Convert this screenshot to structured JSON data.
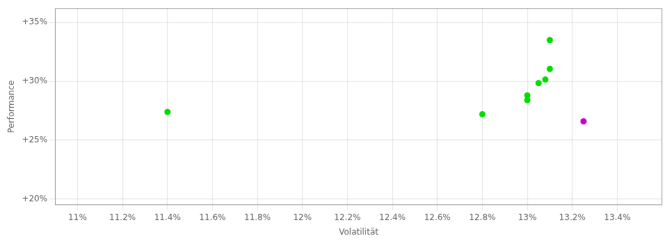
{
  "chart_data": {
    "type": "scatter",
    "xlabel": "Volatilität",
    "ylabel": "Performance",
    "series": [
      {
        "color": "#00dd00",
        "x": [
          0.114,
          0.128,
          0.13,
          0.13,
          0.131,
          0.1308,
          0.1305,
          0.131
        ],
        "values": [
          0.274,
          0.272,
          0.288,
          0.284,
          0.3105,
          0.3015,
          0.2985,
          0.335
        ]
      },
      {
        "color": "#cc00cc",
        "x": [
          0.1325
        ],
        "values": [
          0.266
        ]
      }
    ],
    "xlim": [
      0.109,
      0.136
    ],
    "ylim": [
      0.195,
      0.362
    ],
    "xticks": [
      {
        "value": 0.11,
        "label": "11%"
      },
      {
        "value": 0.112,
        "label": "11.2%"
      },
      {
        "value": 0.114,
        "label": "11.4%"
      },
      {
        "value": 0.116,
        "label": "11.6%"
      },
      {
        "value": 0.118,
        "label": "11.8%"
      },
      {
        "value": 0.12,
        "label": "12%"
      },
      {
        "value": 0.122,
        "label": "12.2%"
      },
      {
        "value": 0.124,
        "label": "12.4%"
      },
      {
        "value": 0.126,
        "label": "12.6%"
      },
      {
        "value": 0.128,
        "label": "12.8%"
      },
      {
        "value": 0.13,
        "label": "13%"
      },
      {
        "value": 0.132,
        "label": "13.2%"
      },
      {
        "value": 0.134,
        "label": "13.4%"
      }
    ],
    "yticks": [
      {
        "value": 0.2,
        "label": "+20%"
      },
      {
        "value": 0.25,
        "label": "+25%"
      },
      {
        "value": 0.3,
        "label": "+30%"
      },
      {
        "value": 0.35,
        "label": "+35%"
      }
    ],
    "grid": true
  }
}
